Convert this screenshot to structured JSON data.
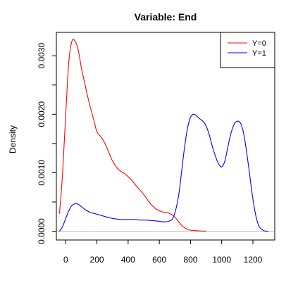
{
  "chart_data": {
    "type": "line",
    "title": "Variable: End",
    "xlabel": "",
    "ylabel": "Density",
    "xlim": [
      -60,
      1340
    ],
    "ylim": [
      -0.00015,
      0.0034
    ],
    "x_ticks": [
      0,
      200,
      400,
      600,
      800,
      1000,
      1200
    ],
    "x_tick_labels": [
      "0",
      "200",
      "400",
      "600",
      "800",
      "1000",
      "1200"
    ],
    "y_ticks": [
      0.0,
      0.0005,
      0.001,
      0.0015,
      0.002,
      0.0025,
      0.003
    ],
    "y_tick_labels": [
      "0.0000",
      "",
      "0.0010",
      "",
      "0.0020",
      "",
      "0.0030"
    ],
    "grid": false,
    "zero_line": true,
    "legend": {
      "placement": "top-right",
      "entries": [
        {
          "label": "Y=0",
          "color": "#ff0000"
        },
        {
          "label": "Y=1",
          "color": "#0000ff"
        }
      ]
    },
    "series": [
      {
        "name": "Y=0",
        "color": "#ff0000",
        "points": [
          [
            -40,
            0.0003
          ],
          [
            -20,
            0.001
          ],
          [
            0,
            0.002
          ],
          [
            20,
            0.0029
          ],
          [
            40,
            0.00325
          ],
          [
            60,
            0.00325
          ],
          [
            80,
            0.0031
          ],
          [
            100,
            0.0028
          ],
          [
            120,
            0.00255
          ],
          [
            150,
            0.0022
          ],
          [
            180,
            0.0019
          ],
          [
            200,
            0.0017
          ],
          [
            230,
            0.0016
          ],
          [
            260,
            0.00145
          ],
          [
            300,
            0.0012
          ],
          [
            340,
            0.00105
          ],
          [
            380,
            0.00098
          ],
          [
            420,
            0.00088
          ],
          [
            460,
            0.00075
          ],
          [
            500,
            0.00063
          ],
          [
            540,
            0.00048
          ],
          [
            580,
            0.00038
          ],
          [
            620,
            0.00033
          ],
          [
            660,
            0.00031
          ],
          [
            700,
            0.00024
          ],
          [
            740,
            0.00011
          ],
          [
            780,
            3e-05
          ],
          [
            830,
            1e-05
          ],
          [
            900,
            0.0
          ]
        ]
      },
      {
        "name": "Y=1",
        "color": "#0000ff",
        "points": [
          [
            -40,
            0.0
          ],
          [
            -20,
            8e-05
          ],
          [
            0,
            0.00022
          ],
          [
            20,
            0.00035
          ],
          [
            40,
            0.00044
          ],
          [
            60,
            0.00047
          ],
          [
            80,
            0.00046
          ],
          [
            100,
            0.00042
          ],
          [
            130,
            0.00036
          ],
          [
            160,
            0.00032
          ],
          [
            200,
            0.00029
          ],
          [
            240,
            0.00026
          ],
          [
            280,
            0.00023
          ],
          [
            320,
            0.00021
          ],
          [
            360,
            0.0002
          ],
          [
            400,
            0.0002
          ],
          [
            440,
            0.0002
          ],
          [
            480,
            0.00019
          ],
          [
            520,
            0.00019
          ],
          [
            560,
            0.00018
          ],
          [
            600,
            0.00017
          ],
          [
            630,
            0.00016
          ],
          [
            660,
            0.00017
          ],
          [
            690,
            0.00024
          ],
          [
            720,
            0.00055
          ],
          [
            740,
            0.00095
          ],
          [
            760,
            0.0014
          ],
          [
            780,
            0.00175
          ],
          [
            800,
            0.00195
          ],
          [
            820,
            0.002
          ],
          [
            840,
            0.00197
          ],
          [
            860,
            0.00192
          ],
          [
            880,
            0.00188
          ],
          [
            900,
            0.0018
          ],
          [
            920,
            0.00165
          ],
          [
            940,
            0.00145
          ],
          [
            960,
            0.00128
          ],
          [
            980,
            0.00115
          ],
          [
            1000,
            0.0011
          ],
          [
            1020,
            0.0012
          ],
          [
            1040,
            0.00145
          ],
          [
            1060,
            0.00168
          ],
          [
            1080,
            0.00183
          ],
          [
            1100,
            0.00188
          ],
          [
            1120,
            0.00185
          ],
          [
            1140,
            0.00168
          ],
          [
            1160,
            0.00135
          ],
          [
            1180,
            0.00095
          ],
          [
            1200,
            0.00055
          ],
          [
            1220,
            0.00025
          ],
          [
            1240,
            8e-05
          ],
          [
            1270,
            1e-05
          ],
          [
            1300,
            0.0
          ]
        ]
      }
    ]
  }
}
